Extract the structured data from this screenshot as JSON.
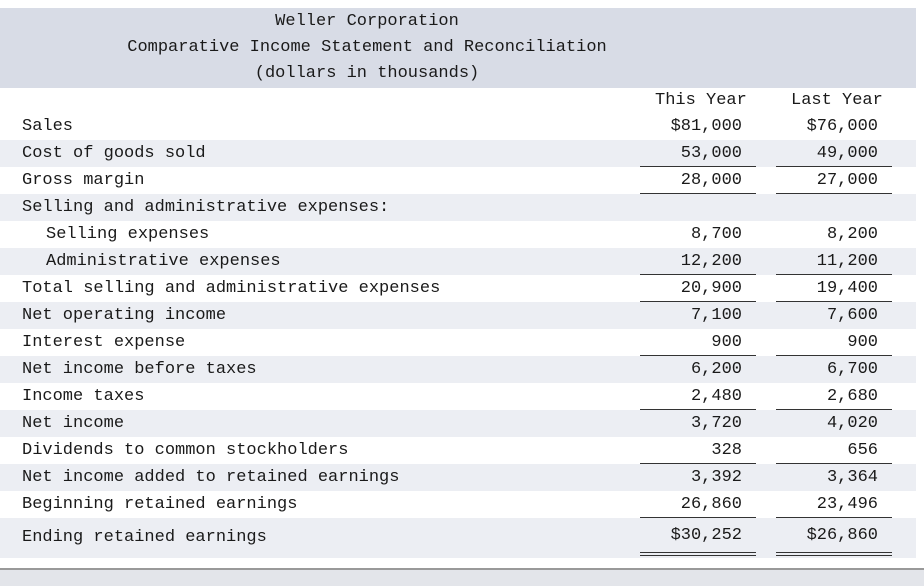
{
  "header": {
    "company": "Weller Corporation",
    "title": "Comparative Income Statement and Reconciliation",
    "units": "(dollars in thousands)"
  },
  "table": {
    "columns": [
      "This Year",
      "Last Year"
    ],
    "rows": [
      [
        "Sales",
        "$81,000",
        "$76,000"
      ],
      [
        "Cost of goods sold",
        "53,000",
        "49,000"
      ],
      [
        "Gross margin",
        "28,000",
        "27,000"
      ],
      [
        "Selling and administrative expenses:"
      ],
      [
        "Selling expenses",
        "8,700",
        "8,200"
      ],
      [
        "Administrative expenses",
        "12,200",
        "11,200"
      ],
      [
        "Total selling and administrative expenses",
        "20,900",
        "19,400"
      ],
      [
        "Net operating income",
        "7,100",
        "7,600"
      ],
      [
        "Interest expense",
        "900",
        "900"
      ],
      [
        "Net income before taxes",
        "6,200",
        "6,700"
      ],
      [
        "Income taxes",
        "2,480",
        "2,680"
      ],
      [
        "Net income",
        "3,720",
        "4,020"
      ],
      [
        "Dividends to common stockholders",
        "328",
        "656"
      ],
      [
        "Net income added to retained earnings",
        "3,392",
        "3,364"
      ],
      [
        "Beginning retained earnings",
        "26,860",
        "23,496"
      ],
      [
        "Ending retained earnings",
        "$30,252",
        "$26,860"
      ]
    ]
  }
}
